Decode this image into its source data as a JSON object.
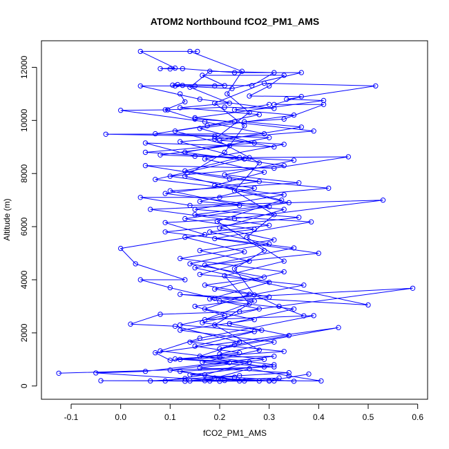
{
  "chart_data": {
    "type": "line",
    "title": "ATOM2 Northbound fCO2_PM1_AMS",
    "xlabel": "fCO2_PM1_AMS",
    "ylabel": "Altitude (m)",
    "xlim": [
      -0.16,
      0.62
    ],
    "ylim": [
      -500,
      13000
    ],
    "xticks": [
      "-0.1",
      "0.0",
      "0.1",
      "0.2",
      "0.3",
      "0.4",
      "0.5",
      "0.6"
    ],
    "yticks": [
      "0",
      "2000",
      "4000",
      "6000",
      "8000",
      "10000",
      "12000"
    ],
    "xtick_values": [
      -0.1,
      0.0,
      0.1,
      0.2,
      0.3,
      0.4,
      0.5,
      0.6
    ],
    "ytick_values": [
      0,
      2000,
      4000,
      6000,
      8000,
      10000,
      12000
    ],
    "grid": false,
    "legend": "none",
    "marker": "open-circle",
    "color": "#0000ff",
    "series": [
      {
        "points": [
          [
            -0.125,
            480
          ],
          [
            0.31,
            720
          ],
          [
            0.165,
            900
          ],
          [
            0.28,
            1350
          ],
          [
            0.19,
            2300
          ],
          [
            0.26,
            3100
          ],
          [
            0.21,
            4150
          ],
          [
            0.33,
            4700
          ],
          [
            0.255,
            5600
          ],
          [
            0.31,
            6450
          ],
          [
            0.23,
            7350
          ],
          [
            0.28,
            8400
          ],
          [
            0.19,
            9300
          ],
          [
            0.26,
            10300
          ],
          [
            0.215,
            11000
          ],
          [
            0.245,
            11850
          ],
          [
            0.14,
            12600
          ],
          [
            0.155,
            12600
          ],
          [
            0.04,
            12600
          ],
          [
            0.11,
            11970
          ],
          [
            0.08,
            11950
          ],
          [
            0.1,
            11940
          ],
          [
            0.125,
            11950
          ],
          [
            0.23,
            11800
          ],
          [
            0.365,
            11800
          ],
          [
            0.225,
            11200
          ],
          [
            0.11,
            11300
          ],
          [
            0.04,
            11300
          ],
          [
            0.16,
            10800
          ],
          [
            0.31,
            10450
          ],
          [
            0.21,
            10500
          ],
          [
            0.095,
            10400
          ],
          [
            0.0,
            10380
          ],
          [
            0.17,
            9950
          ],
          [
            0.29,
            9500
          ],
          [
            -0.03,
            9480
          ],
          [
            0.19,
            9400
          ],
          [
            0.31,
            9000
          ],
          [
            0.05,
            9150
          ],
          [
            0.15,
            8650
          ],
          [
            0.26,
            8600
          ],
          [
            0.46,
            8630
          ],
          [
            0.31,
            8200
          ],
          [
            0.05,
            8300
          ],
          [
            0.22,
            7800
          ],
          [
            0.42,
            7450
          ],
          [
            0.2,
            7100
          ],
          [
            0.04,
            7100
          ],
          [
            0.14,
            6800
          ],
          [
            0.53,
            7000
          ],
          [
            0.23,
            6300
          ],
          [
            0.09,
            6150
          ],
          [
            0.17,
            5700
          ],
          [
            0.0,
            5180
          ],
          [
            0.03,
            4600
          ],
          [
            0.13,
            4000
          ],
          [
            0.04,
            4000
          ],
          [
            0.1,
            3700
          ],
          [
            0.19,
            3300
          ],
          [
            0.59,
            3680
          ],
          [
            0.24,
            2800
          ],
          [
            0.08,
            2700
          ],
          [
            0.02,
            2330
          ],
          [
            0.11,
            2250
          ],
          [
            0.24,
            1650
          ],
          [
            0.2,
            1400
          ],
          [
            0.44,
            2200
          ],
          [
            0.07,
            1250
          ],
          [
            0.1,
            970
          ],
          [
            0.2,
            1080
          ],
          [
            0.31,
            1120
          ],
          [
            0.05,
            550
          ],
          [
            -0.05,
            490
          ],
          [
            0.13,
            280
          ],
          [
            0.21,
            210
          ],
          [
            0.405,
            190
          ],
          [
            0.34,
            380
          ],
          [
            0.26,
            650
          ],
          [
            0.17,
            200
          ],
          [
            -0.04,
            200
          ],
          [
            0.18,
            190
          ],
          [
            0.3,
            200
          ],
          [
            0.38,
            450
          ]
        ]
      },
      {
        "points": [
          [
            0.37,
            2640
          ],
          [
            0.32,
            3000
          ],
          [
            0.27,
            3430
          ],
          [
            0.23,
            4420
          ],
          [
            0.29,
            5100
          ],
          [
            0.195,
            6200
          ],
          [
            0.325,
            7000
          ],
          [
            0.13,
            7900
          ],
          [
            0.21,
            8800
          ],
          [
            0.25,
            9800
          ],
          [
            0.19,
            10650
          ],
          [
            0.29,
            11400
          ],
          [
            0.515,
            11300
          ],
          [
            0.335,
            10800
          ],
          [
            0.41,
            10750
          ],
          [
            0.15,
            10100
          ],
          [
            0.39,
            9600
          ],
          [
            0.12,
            9200
          ],
          [
            0.25,
            8550
          ],
          [
            0.07,
            7780
          ],
          [
            0.33,
            7200
          ],
          [
            0.15,
            6650
          ],
          [
            0.36,
            6350
          ],
          [
            0.09,
            5800
          ],
          [
            0.35,
            5200
          ],
          [
            0.15,
            4450
          ],
          [
            0.5,
            3050
          ],
          [
            0.12,
            3450
          ],
          [
            0.27,
            3200
          ],
          [
            0.17,
            2500
          ],
          [
            0.39,
            2650
          ],
          [
            0.16,
            1800
          ],
          [
            0.08,
            1320
          ],
          [
            0.31,
            800
          ],
          [
            0.14,
            420
          ],
          [
            0.23,
            330
          ],
          [
            0.35,
            180
          ]
        ]
      },
      {
        "points": [
          [
            0.105,
            11330
          ],
          [
            0.125,
            11320
          ],
          [
            0.15,
            11300
          ],
          [
            0.19,
            11300
          ],
          [
            0.21,
            11310
          ],
          [
            0.165,
            11700
          ],
          [
            0.33,
            11700
          ],
          [
            0.3,
            11300
          ],
          [
            0.26,
            10920
          ],
          [
            0.365,
            10900
          ],
          [
            0.31,
            10600
          ],
          [
            0.41,
            10600
          ],
          [
            0.33,
            10050
          ],
          [
            0.25,
            9950
          ],
          [
            0.365,
            9750
          ],
          [
            0.2,
            9250
          ],
          [
            0.33,
            9100
          ],
          [
            0.17,
            8550
          ],
          [
            0.29,
            8050
          ],
          [
            0.19,
            7550
          ],
          [
            0.34,
            6900
          ],
          [
            0.15,
            6450
          ],
          [
            0.385,
            6180
          ],
          [
            0.19,
            5550
          ],
          [
            0.4,
            5000
          ],
          [
            0.17,
            4550
          ],
          [
            0.3,
            3900
          ],
          [
            0.18,
            3280
          ],
          [
            0.28,
            2900
          ],
          [
            0.165,
            2380
          ],
          [
            0.285,
            2100
          ],
          [
            0.14,
            1650
          ],
          [
            0.33,
            1300
          ],
          [
            0.11,
            1020
          ],
          [
            0.26,
            900
          ],
          [
            0.17,
            420
          ],
          [
            0.09,
            190
          ],
          [
            0.2,
            180
          ],
          [
            0.3,
            190
          ]
        ]
      },
      {
        "points": [
          [
            0.115,
            11350
          ],
          [
            0.265,
            11310
          ],
          [
            0.31,
            11800
          ],
          [
            0.18,
            11850
          ],
          [
            0.14,
            11250
          ],
          [
            0.22,
            10650
          ],
          [
            0.12,
            10480
          ],
          [
            0.28,
            10220
          ],
          [
            0.175,
            9800
          ],
          [
            0.07,
            9500
          ],
          [
            0.3,
            9350
          ],
          [
            0.13,
            8800
          ],
          [
            0.33,
            8300
          ],
          [
            0.1,
            7900
          ],
          [
            0.27,
            7450
          ],
          [
            0.16,
            6950
          ],
          [
            0.33,
            6650
          ],
          [
            0.2,
            5950
          ],
          [
            0.31,
            5500
          ],
          [
            0.16,
            5100
          ],
          [
            0.26,
            4700
          ],
          [
            0.16,
            4200
          ],
          [
            0.37,
            3800
          ],
          [
            0.2,
            3200
          ],
          [
            0.35,
            2900
          ],
          [
            0.22,
            2350
          ],
          [
            0.34,
            1900
          ],
          [
            0.23,
            1550
          ],
          [
            0.16,
            1120
          ],
          [
            0.29,
            720
          ],
          [
            0.12,
            550
          ],
          [
            0.25,
            190
          ],
          [
            0.14,
            190
          ],
          [
            0.24,
            390
          ],
          [
            0.13,
            180
          ],
          [
            0.32,
            300
          ]
        ]
      },
      {
        "points": [
          [
            0.12,
            11000
          ],
          [
            0.13,
            10700
          ],
          [
            0.09,
            10400
          ],
          [
            0.15,
            10050
          ],
          [
            0.23,
            9950
          ],
          [
            0.11,
            9600
          ],
          [
            0.22,
            9050
          ],
          [
            0.08,
            8700
          ],
          [
            0.35,
            8500
          ],
          [
            0.21,
            7950
          ],
          [
            0.36,
            7650
          ],
          [
            0.1,
            7350
          ],
          [
            0.24,
            6800
          ],
          [
            0.06,
            6650
          ],
          [
            0.3,
            6050
          ],
          [
            0.18,
            5800
          ],
          [
            0.3,
            5350
          ],
          [
            0.12,
            4800
          ],
          [
            0.33,
            4300
          ],
          [
            0.19,
            3650
          ],
          [
            0.26,
            3450
          ],
          [
            0.17,
            2900
          ],
          [
            0.27,
            2500
          ],
          [
            0.12,
            2100
          ],
          [
            0.31,
            1650
          ],
          [
            0.2,
            1200
          ],
          [
            0.29,
            1000
          ],
          [
            0.16,
            680
          ],
          [
            0.34,
            500
          ],
          [
            0.06,
            190
          ],
          [
            0.28,
            190
          ],
          [
            0.19,
            300
          ],
          [
            0.31,
            190
          ]
        ]
      },
      {
        "points": [
          [
            0.3,
            10600
          ],
          [
            0.23,
            10400
          ],
          [
            0.35,
            10200
          ],
          [
            0.16,
            9700
          ],
          [
            0.27,
            9150
          ],
          [
            0.05,
            8800
          ],
          [
            0.24,
            8600
          ],
          [
            0.13,
            8100
          ],
          [
            0.28,
            7700
          ],
          [
            0.09,
            7250
          ],
          [
            0.3,
            6750
          ],
          [
            0.13,
            6300
          ],
          [
            0.27,
            5900
          ],
          [
            0.13,
            5600
          ],
          [
            0.25,
            5050
          ],
          [
            0.14,
            4600
          ],
          [
            0.29,
            4100
          ],
          [
            0.17,
            3800
          ],
          [
            0.3,
            3350
          ],
          [
            0.15,
            3000
          ],
          [
            0.21,
            2650
          ],
          [
            0.12,
            2300
          ],
          [
            0.27,
            2050
          ],
          [
            0.15,
            1500
          ],
          [
            0.24,
            1250
          ],
          [
            0.12,
            1000
          ],
          [
            0.22,
            880
          ],
          [
            0.1,
            600
          ],
          [
            0.24,
            190
          ]
        ]
      }
    ]
  }
}
